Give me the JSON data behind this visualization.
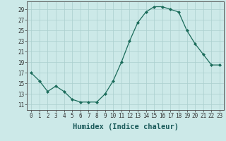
{
  "x": [
    0,
    1,
    2,
    3,
    4,
    5,
    6,
    7,
    8,
    9,
    10,
    11,
    12,
    13,
    14,
    15,
    16,
    17,
    18,
    19,
    20,
    21,
    22,
    23
  ],
  "y": [
    17,
    15.5,
    13.5,
    14.5,
    13.5,
    12,
    11.5,
    11.5,
    11.5,
    13,
    15.5,
    19,
    23,
    26.5,
    28.5,
    29.5,
    29.5,
    29,
    28.5,
    25,
    22.5,
    20.5,
    18.5,
    18.5
  ],
  "line_color": "#1a6b5a",
  "marker": "D",
  "marker_size": 2.0,
  "bg_color": "#cce9e8",
  "grid_color": "#aacfce",
  "xlabel": "Humidex (Indice chaleur)",
  "xlim": [
    -0.5,
    23.5
  ],
  "ylim": [
    10.0,
    30.5
  ],
  "yticks": [
    11,
    13,
    15,
    17,
    19,
    21,
    23,
    25,
    27,
    29
  ],
  "xticks": [
    0,
    1,
    2,
    3,
    4,
    5,
    6,
    7,
    8,
    9,
    10,
    11,
    12,
    13,
    14,
    15,
    16,
    17,
    18,
    19,
    20,
    21,
    22,
    23
  ],
  "tick_fontsize": 5.5,
  "xlabel_fontsize": 7.5,
  "line_width": 0.9
}
